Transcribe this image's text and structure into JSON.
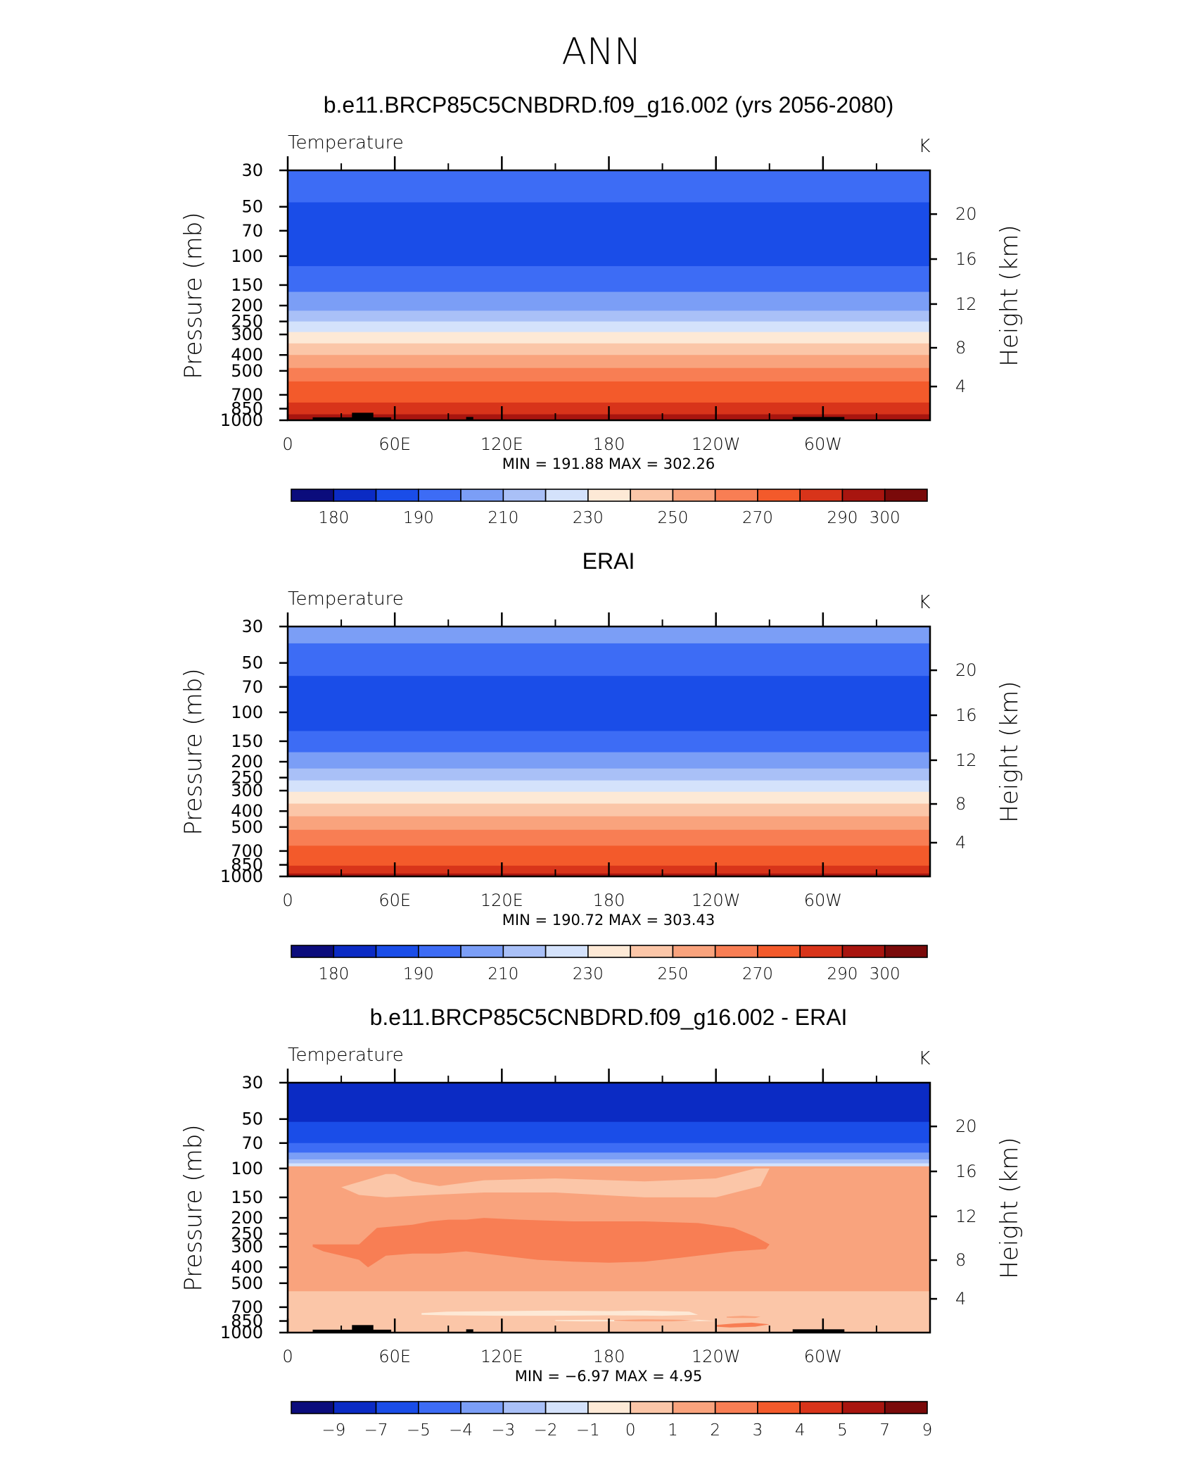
{
  "figure_title": "ANN",
  "panels": [
    {
      "title": "b.e11.BRCP85C5CNBDRD.f09_g16.002 (yrs 2056-2080)",
      "left_label": "Temperature",
      "units": "K",
      "y_axis_title": "Pressure  (mb)",
      "right_axis_title": "Height  (km)",
      "stats": "MIN =  191.88   MAX =  302.26"
    },
    {
      "title": "ERAI",
      "left_label": "Temperature",
      "units": "K",
      "y_axis_title": "Pressure  (mb)",
      "right_axis_title": "Height  (km)",
      "stats": "MIN =  190.72   MAX =  303.43"
    },
    {
      "title": "b.e11.BRCP85C5CNBDRD.f09_g16.002 - ERAI",
      "left_label": "Temperature",
      "units": "K",
      "y_axis_title": "Pressure  (mb)",
      "right_axis_title": "Height  (km)",
      "stats": "MIN =    −6.97   MAX =     4.95"
    }
  ],
  "chart_data": [
    {
      "type": "heatmap",
      "title": "b.e11.BRCP85C5CNBDRD.f09_g16.002 (yrs 2056-2080)",
      "xlabel": "",
      "ylabel": "Pressure  (mb)",
      "x_ticks": [
        "0",
        "60E",
        "120E",
        "180",
        "120W",
        "60W"
      ],
      "y_ticks": [
        "30",
        "50",
        "70",
        "100",
        "150",
        "200",
        "250",
        "300",
        "400",
        "500",
        "700",
        "850",
        "1000"
      ],
      "right_ticks": [
        "20",
        "16",
        "12",
        "8",
        "4"
      ],
      "y_scale": "log-pressure",
      "ylim": [
        1000,
        30
      ],
      "min": 191.88,
      "max": 302.26,
      "colorbar_labels": [
        "180",
        "190",
        "210",
        "230",
        "250",
        "270",
        "290",
        "300"
      ],
      "colorbar_colors": [
        "#0b0c7c",
        "#0b2bc4",
        "#1a4de8",
        "#3d6cf5",
        "#7b9ef6",
        "#a9c0f7",
        "#d4e2fb",
        "#fde9d6",
        "#fbc6a8",
        "#f9a37d",
        "#f87e54",
        "#f35a2b",
        "#d8341a",
        "#a8150f",
        "#7a0a0a"
      ],
      "bands": [
        {
          "p_top": 30,
          "p_bot": 47,
          "color": "#3d6cf5"
        },
        {
          "p_top": 47,
          "p_bot": 115,
          "color": "#1a4de8"
        },
        {
          "p_top": 115,
          "p_bot": 165,
          "color": "#3d6cf5"
        },
        {
          "p_top": 165,
          "p_bot": 215,
          "color": "#7b9ef6"
        },
        {
          "p_top": 215,
          "p_bot": 250,
          "color": "#a9c0f7"
        },
        {
          "p_top": 250,
          "p_bot": 290,
          "color": "#d4e2fb"
        },
        {
          "p_top": 290,
          "p_bot": 340,
          "color": "#fde9d6"
        },
        {
          "p_top": 340,
          "p_bot": 400,
          "color": "#fbc6a8"
        },
        {
          "p_top": 400,
          "p_bot": 480,
          "color": "#f9a37d"
        },
        {
          "p_top": 480,
          "p_bot": 580,
          "color": "#f87e54"
        },
        {
          "p_top": 580,
          "p_bot": 780,
          "color": "#f35a2b"
        },
        {
          "p_top": 780,
          "p_bot": 920,
          "color": "#d8341a"
        },
        {
          "p_top": 920,
          "p_bot": 1000,
          "color": "#a8150f"
        }
      ],
      "topography": true
    },
    {
      "type": "heatmap",
      "title": "ERAI",
      "xlabel": "",
      "ylabel": "Pressure  (mb)",
      "x_ticks": [
        "0",
        "60E",
        "120E",
        "180",
        "120W",
        "60W"
      ],
      "y_ticks": [
        "30",
        "50",
        "70",
        "100",
        "150",
        "200",
        "250",
        "300",
        "400",
        "500",
        "700",
        "850",
        "1000"
      ],
      "right_ticks": [
        "20",
        "16",
        "12",
        "8",
        "4"
      ],
      "y_scale": "log-pressure",
      "ylim": [
        1000,
        30
      ],
      "min": 190.72,
      "max": 303.43,
      "colorbar_labels": [
        "180",
        "190",
        "210",
        "230",
        "250",
        "270",
        "290",
        "300"
      ],
      "colorbar_colors": [
        "#0b0c7c",
        "#0b2bc4",
        "#1a4de8",
        "#3d6cf5",
        "#7b9ef6",
        "#a9c0f7",
        "#d4e2fb",
        "#fde9d6",
        "#fbc6a8",
        "#f9a37d",
        "#f87e54",
        "#f35a2b",
        "#d8341a",
        "#a8150f",
        "#7a0a0a"
      ],
      "bands": [
        {
          "p_top": 30,
          "p_bot": 38,
          "color": "#7b9ef6"
        },
        {
          "p_top": 38,
          "p_bot": 60,
          "color": "#3d6cf5"
        },
        {
          "p_top": 60,
          "p_bot": 130,
          "color": "#1a4de8"
        },
        {
          "p_top": 130,
          "p_bot": 175,
          "color": "#3d6cf5"
        },
        {
          "p_top": 175,
          "p_bot": 220,
          "color": "#7b9ef6"
        },
        {
          "p_top": 220,
          "p_bot": 260,
          "color": "#a9c0f7"
        },
        {
          "p_top": 260,
          "p_bot": 305,
          "color": "#d4e2fb"
        },
        {
          "p_top": 305,
          "p_bot": 360,
          "color": "#fde9d6"
        },
        {
          "p_top": 360,
          "p_bot": 430,
          "color": "#fbc6a8"
        },
        {
          "p_top": 430,
          "p_bot": 520,
          "color": "#f9a37d"
        },
        {
          "p_top": 520,
          "p_bot": 650,
          "color": "#f87e54"
        },
        {
          "p_top": 650,
          "p_bot": 860,
          "color": "#f35a2b"
        },
        {
          "p_top": 860,
          "p_bot": 960,
          "color": "#d8341a"
        },
        {
          "p_top": 960,
          "p_bot": 1000,
          "color": "#a8150f"
        }
      ],
      "topography": false
    },
    {
      "type": "heatmap",
      "title": "b.e11.BRCP85C5CNBDRD.f09_g16.002 - ERAI",
      "xlabel": "",
      "ylabel": "Pressure  (mb)",
      "x_ticks": [
        "0",
        "60E",
        "120E",
        "180",
        "120W",
        "60W"
      ],
      "y_ticks": [
        "30",
        "50",
        "70",
        "100",
        "150",
        "200",
        "250",
        "300",
        "400",
        "500",
        "700",
        "850",
        "1000"
      ],
      "right_ticks": [
        "20",
        "16",
        "12",
        "8",
        "4"
      ],
      "y_scale": "log-pressure",
      "ylim": [
        1000,
        30
      ],
      "min": -6.97,
      "max": 4.95,
      "colorbar_labels": [
        "−9",
        "−7",
        "−5",
        "−4",
        "−3",
        "−2",
        "−1",
        "0",
        "1",
        "2",
        "3",
        "4",
        "5",
        "7",
        "9"
      ],
      "colorbar_colors": [
        "#0b0c7c",
        "#0b2bc4",
        "#1a4de8",
        "#3d6cf5",
        "#7b9ef6",
        "#a9c0f7",
        "#d4e2fb",
        "#fde9d6",
        "#fbc6a8",
        "#f9a37d",
        "#f87e54",
        "#f35a2b",
        "#d8341a",
        "#a8150f",
        "#7a0a0a"
      ],
      "bands": [
        {
          "p_top": 30,
          "p_bot": 52,
          "color": "#0b2bc4"
        },
        {
          "p_top": 52,
          "p_bot": 70,
          "color": "#1a4de8"
        },
        {
          "p_top": 70,
          "p_bot": 80,
          "color": "#3d6cf5"
        },
        {
          "p_top": 80,
          "p_bot": 88,
          "color": "#7b9ef6"
        },
        {
          "p_top": 88,
          "p_bot": 93,
          "color": "#a9c0f7"
        },
        {
          "p_top": 93,
          "p_bot": 97,
          "color": "#d4e2fb"
        },
        {
          "p_top": 97,
          "p_bot": 560,
          "color": "#f9a37d"
        },
        {
          "p_top": 560,
          "p_bot": 1000,
          "color": "#fbc6a8"
        }
      ],
      "blobs": [
        {
          "lon": [
            55,
            60,
            70,
            85,
            110,
            150,
            200,
            240,
            262,
            270,
            265,
            240,
            200,
            150,
            110,
            80,
            55,
            40,
            30
          ],
          "p": [
            108,
            108,
            120,
            128,
            118,
            115,
            120,
            115,
            100,
            100,
            128,
            150,
            150,
            140,
            140,
            145,
            150,
            145,
            130
          ],
          "color": "#fbc6a8"
        },
        {
          "lon": [
            14,
            40,
            50,
            70,
            80,
            90,
            100,
            110,
            130,
            160,
            200,
            230,
            250,
            262,
            270,
            268,
            250,
            220,
            200,
            180,
            160,
            140,
            120,
            100,
            85,
            70,
            55,
            45,
            40,
            20,
            14
          ],
          "p": [
            290,
            290,
            230,
            220,
            210,
            205,
            205,
            200,
            205,
            210,
            210,
            215,
            230,
            260,
            290,
            310,
            320,
            350,
            370,
            375,
            370,
            360,
            340,
            320,
            330,
            330,
            340,
            400,
            360,
            320,
            300
          ],
          "color": "#f87e54"
        },
        {
          "lon": [
            75,
            90,
            120,
            150,
            180,
            200,
            225,
            230,
            210,
            180,
            150,
            120,
            90,
            75
          ],
          "p": [
            760,
            745,
            740,
            735,
            740,
            735,
            745,
            780,
            790,
            785,
            790,
            790,
            785,
            780
          ],
          "color": "#fde9d6"
        },
        {
          "lon": [
            150,
            170,
            200,
            230,
            240,
            215,
            190,
            165,
            150
          ],
          "p": [
            840,
            835,
            840,
            835,
            850,
            855,
            855,
            855,
            850
          ],
          "color": "#fde9d6"
        },
        {
          "lon": [
            183,
            200,
            220,
            230,
            215,
            195,
            183
          ],
          "p": [
            840,
            830,
            835,
            845,
            855,
            855,
            850
          ],
          "color": "#f9a37d"
        },
        {
          "lon": [
            240,
            250,
            260,
            270,
            262,
            248,
            240
          ],
          "p": [
            900,
            880,
            870,
            890,
            920,
            930,
            920
          ],
          "color": "#f87e54"
        },
        {
          "lon": [
            246,
            255,
            265,
            262,
            250,
            246
          ],
          "p": [
            800,
            790,
            800,
            815,
            815,
            810
          ],
          "color": "#f9a37d"
        }
      ],
      "topography": true
    }
  ]
}
